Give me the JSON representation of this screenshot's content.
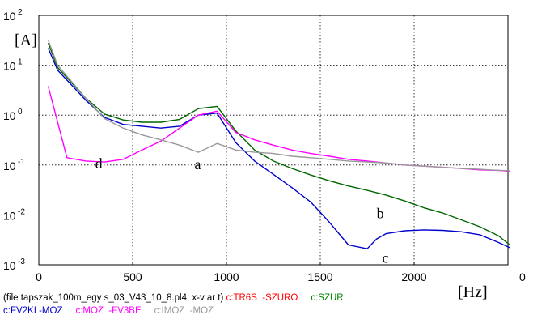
{
  "chart_data": {
    "type": "line",
    "x_ticks": [
      "0",
      "500",
      "1000",
      "1500",
      "2000"
    ],
    "x_tick_values": [
      0,
      500,
      1000,
      1500,
      2000
    ],
    "x_end_tick": "0",
    "y_tick_base": "10",
    "y_tick_exponents": [
      "2",
      "1",
      "0",
      "-1",
      "-2",
      "-3"
    ],
    "y_tick_decades": [
      2,
      1,
      0,
      -1,
      -2,
      -3
    ],
    "ylabel": "[A]",
    "xlabel": "[Hz]",
    "xlim": [
      0,
      2500
    ],
    "ylim_decades": [
      -3,
      2
    ],
    "y_scale": "log",
    "grid": true,
    "annotations": [
      {
        "text": "a",
        "x": 830,
        "y": 0.082
      },
      {
        "text": "b",
        "x": 1800,
        "y": 0.0085
      },
      {
        "text": "c",
        "x": 1830,
        "y": 0.0011
      },
      {
        "text": "d",
        "x": 300,
        "y": 0.085
      }
    ],
    "series": [
      {
        "color": "#0000cc",
        "points": [
          [
            50,
            22
          ],
          [
            100,
            8
          ],
          [
            250,
            2
          ],
          [
            350,
            0.9
          ],
          [
            450,
            0.65
          ],
          [
            550,
            0.6
          ],
          [
            650,
            0.55
          ],
          [
            750,
            0.6
          ],
          [
            850,
            1.0
          ],
          [
            950,
            1.1
          ],
          [
            1050,
            0.28
          ],
          [
            1150,
            0.12
          ],
          [
            1250,
            0.065
          ],
          [
            1350,
            0.035
          ],
          [
            1450,
            0.018
          ],
          [
            1550,
            0.007
          ],
          [
            1650,
            0.0025
          ],
          [
            1750,
            0.0021
          ],
          [
            1800,
            0.0033
          ],
          [
            1850,
            0.0042
          ],
          [
            1950,
            0.0048
          ],
          [
            2050,
            0.005
          ],
          [
            2150,
            0.0049
          ],
          [
            2250,
            0.0046
          ],
          [
            2350,
            0.004
          ],
          [
            2450,
            0.0028
          ],
          [
            2510,
            0.0022
          ]
        ]
      },
      {
        "color": "#006600",
        "points": [
          [
            50,
            28
          ],
          [
            100,
            9
          ],
          [
            250,
            2.2
          ],
          [
            350,
            1.05
          ],
          [
            450,
            0.8
          ],
          [
            550,
            0.72
          ],
          [
            650,
            0.72
          ],
          [
            750,
            0.82
          ],
          [
            850,
            1.35
          ],
          [
            950,
            1.5
          ],
          [
            1050,
            0.48
          ],
          [
            1150,
            0.2
          ],
          [
            1250,
            0.12
          ],
          [
            1350,
            0.085
          ],
          [
            1450,
            0.063
          ],
          [
            1550,
            0.048
          ],
          [
            1650,
            0.038
          ],
          [
            1750,
            0.031
          ],
          [
            1850,
            0.025
          ],
          [
            1950,
            0.019
          ],
          [
            2050,
            0.014
          ],
          [
            2150,
            0.011
          ],
          [
            2250,
            0.008
          ],
          [
            2350,
            0.0058
          ],
          [
            2450,
            0.0038
          ],
          [
            2510,
            0.0025
          ]
        ]
      },
      {
        "color": "#ff00ff",
        "points": [
          [
            50,
            3.8
          ],
          [
            150,
            0.14
          ],
          [
            250,
            0.12
          ],
          [
            350,
            0.115
          ],
          [
            450,
            0.13
          ],
          [
            550,
            0.2
          ],
          [
            650,
            0.3
          ],
          [
            750,
            0.55
          ],
          [
            850,
            1.0
          ],
          [
            950,
            1.2
          ],
          [
            1050,
            0.45
          ],
          [
            1150,
            0.32
          ],
          [
            1250,
            0.25
          ],
          [
            1350,
            0.2
          ],
          [
            1450,
            0.17
          ],
          [
            1550,
            0.15
          ],
          [
            1650,
            0.13
          ],
          [
            1750,
            0.12
          ],
          [
            1850,
            0.11
          ],
          [
            1950,
            0.1
          ],
          [
            2050,
            0.095
          ],
          [
            2150,
            0.09
          ],
          [
            2250,
            0.085
          ],
          [
            2350,
            0.08
          ],
          [
            2450,
            0.078
          ],
          [
            2510,
            0.075
          ]
        ]
      },
      {
        "color": "#999999",
        "points": [
          [
            50,
            32
          ],
          [
            100,
            10
          ],
          [
            250,
            2.2
          ],
          [
            350,
            0.85
          ],
          [
            450,
            0.55
          ],
          [
            550,
            0.4
          ],
          [
            650,
            0.32
          ],
          [
            750,
            0.25
          ],
          [
            850,
            0.18
          ],
          [
            950,
            0.27
          ],
          [
            1050,
            0.2
          ],
          [
            1150,
            0.18
          ],
          [
            1250,
            0.17
          ],
          [
            1350,
            0.15
          ],
          [
            1450,
            0.14
          ],
          [
            1550,
            0.13
          ],
          [
            1650,
            0.12
          ],
          [
            1750,
            0.115
          ],
          [
            1850,
            0.11
          ],
          [
            1950,
            0.1
          ],
          [
            2050,
            0.095
          ],
          [
            2150,
            0.09
          ],
          [
            2250,
            0.085
          ],
          [
            2350,
            0.082
          ],
          [
            2450,
            0.078
          ],
          [
            2510,
            0.077
          ]
        ]
      }
    ]
  },
  "caption": {
    "line1": [
      {
        "text": "(file tapszak_100m_egy s_03_V43_10_8.pl4; x-v ar t) ",
        "color": "#000000"
      },
      {
        "text": "c:TR6S  -SZURO",
        "color": "#ff0000"
      },
      {
        "text": "     ",
        "color": "#000000"
      },
      {
        "text": "c:SZUR",
        "color": "#008000"
      }
    ],
    "line2": [
      {
        "text": "c:FV2KI -MOZ",
        "color": "#0000cc"
      },
      {
        "text": "     ",
        "color": "#000000"
      },
      {
        "text": "c:MOZ  -FV3BE",
        "color": "#ff00ff"
      },
      {
        "text": "     ",
        "color": "#000000"
      },
      {
        "text": "c:IMOZ  -MOZ",
        "color": "#999999"
      }
    ]
  }
}
